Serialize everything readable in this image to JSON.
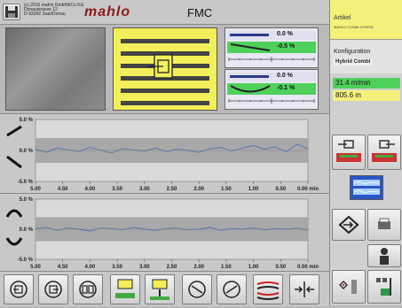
{
  "header": {
    "company_line1": "(c) 2016 mahlo GmbH&Co KG",
    "company_line2": "Donaustrasse 12",
    "company_line3": "D-93342 Saal/Donau",
    "logo_text": "mahlo",
    "title": "FMC"
  },
  "side_panel": {
    "article_label": "Artikel",
    "article_value": "MAHLO COMBI HYBRID",
    "config_label": "Konfiguration",
    "config_value": "Hybrid Combi",
    "speed": "31.4 m/min",
    "length": "805.6 m"
  },
  "indicators": {
    "top_a": "0.0 %",
    "top_b": "-0.5 %",
    "bottom_a": "0.0 %",
    "bottom_b": "-0.1 %"
  },
  "chart_data": [
    {
      "type": "line",
      "ylabel_top": "5.0 %",
      "ylabel_mid": "0.0 %",
      "ylabel_bottom": "-5.0 %",
      "ylim": [
        -5,
        5
      ],
      "x_ticks": [
        "5.00",
        "4.50",
        "4.00",
        "3.50",
        "3.00",
        "2.50",
        "2.00",
        "1.50",
        "1.00",
        "0.50",
        "0.00 min"
      ],
      "x": [
        5.0,
        4.8,
        4.6,
        4.4,
        4.2,
        4.0,
        3.8,
        3.6,
        3.4,
        3.2,
        3.0,
        2.8,
        2.6,
        2.4,
        2.2,
        2.0,
        1.8,
        1.6,
        1.4,
        1.2,
        1.0,
        0.8,
        0.6,
        0.4,
        0.2,
        0.0
      ],
      "values": [
        0.2,
        -0.3,
        0.4,
        0.1,
        -0.2,
        0.5,
        0.0,
        -0.4,
        0.3,
        0.1,
        -0.1,
        0.4,
        -0.2,
        0.2,
        0.0,
        -0.3,
        0.3,
        0.5,
        -0.1,
        0.4,
        0.8,
        0.2,
        0.6,
        -0.2,
        1.0,
        0.3
      ]
    },
    {
      "type": "line",
      "ylabel_top": "5.0 %",
      "ylabel_mid": "0.0 %",
      "ylabel_bottom": "-5.0 %",
      "ylim": [
        -5,
        5
      ],
      "x_ticks": [
        "5.00",
        "4.50",
        "4.00",
        "3.50",
        "3.00",
        "2.50",
        "2.00",
        "1.50",
        "1.00",
        "0.50",
        "0.00 min"
      ],
      "x": [
        5.0,
        4.8,
        4.6,
        4.4,
        4.2,
        4.0,
        3.8,
        3.6,
        3.4,
        3.2,
        3.0,
        2.8,
        2.6,
        2.4,
        2.2,
        2.0,
        1.8,
        1.6,
        1.4,
        1.2,
        1.0,
        0.8,
        0.6,
        0.4,
        0.2,
        0.0
      ],
      "values": [
        0.1,
        0.3,
        -0.2,
        0.2,
        0.0,
        -0.3,
        0.2,
        0.1,
        -0.1,
        0.3,
        0.0,
        -0.2,
        0.1,
        0.2,
        -0.1,
        0.0,
        0.3,
        -0.2,
        0.1,
        0.0,
        0.2,
        -0.1,
        0.1,
        0.0,
        0.2,
        -0.1
      ]
    }
  ],
  "colors": {
    "yellow": "#f2ef5a",
    "green": "#4fd05a",
    "series": "#5577aa",
    "band": "#a8a8a8"
  }
}
